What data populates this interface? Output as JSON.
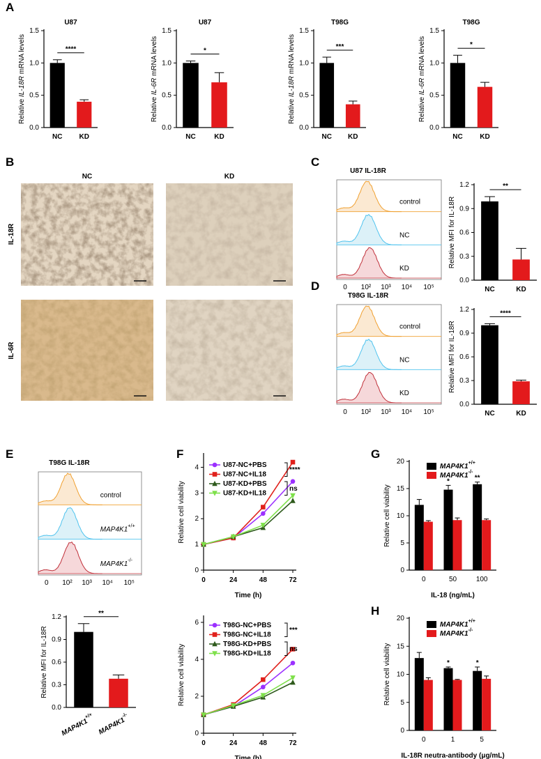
{
  "panel_labels": [
    "A",
    "B",
    "C",
    "D",
    "E",
    "F",
    "G",
    "H"
  ],
  "ihc": {
    "columns": [
      "NC",
      "KD"
    ],
    "rows": [
      "IL-18R",
      "IL-6R"
    ]
  },
  "flow": [
    {
      "title": "U87 IL-18R",
      "populations": [
        "control",
        "NC",
        "KD"
      ],
      "x_labels": [
        "0",
        "10²",
        "10³",
        "10⁴",
        "10⁵"
      ]
    },
    {
      "title": "T98G IL-18R",
      "populations": [
        "control",
        "NC",
        "KD"
      ],
      "x_labels": [
        "0",
        "10²",
        "10³",
        "10⁴",
        "10⁵"
      ]
    },
    {
      "title": "T98G IL-18R",
      "populations": [
        "control",
        "MAP4K1+/+",
        "MAP4K1-/-"
      ],
      "x_labels": [
        "0",
        "10²",
        "10³",
        "10⁴",
        "10⁵"
      ]
    }
  ],
  "chart_data": [
    {
      "type": "bar",
      "title": "U87",
      "ylabel": "Relative IL-18R mRNA levels",
      "categories": [
        "NC",
        "KD"
      ],
      "values": [
        1.0,
        0.4
      ],
      "errors": [
        0.05,
        0.03
      ],
      "colors": [
        "#000000",
        "#e31a1c"
      ],
      "ylim": [
        0,
        1.5
      ],
      "yticks": [
        {
          "value": 0,
          "label": "0.0"
        },
        0.5,
        {
          "value": 1,
          "label": "1.0"
        },
        1.5
      ],
      "significance": "****"
    },
    {
      "type": "bar",
      "title": "U87",
      "ylabel": "Relative IL-6R mRNA levels",
      "categories": [
        "NC",
        "KD"
      ],
      "values": [
        1.0,
        0.7
      ],
      "errors": [
        0.03,
        0.15
      ],
      "colors": [
        "#000000",
        "#e31a1c"
      ],
      "ylim": [
        0,
        1.5
      ],
      "yticks": [
        {
          "value": 0,
          "label": "0.0"
        },
        0.5,
        {
          "value": 1,
          "label": "1.0"
        },
        1.5
      ],
      "significance": "*"
    },
    {
      "type": "bar",
      "title": "T98G",
      "ylabel": "Relative IL-18R mRNA levels",
      "categories": [
        "NC",
        "KD"
      ],
      "values": [
        1.0,
        0.36
      ],
      "errors": [
        0.09,
        0.05
      ],
      "colors": [
        "#000000",
        "#e31a1c"
      ],
      "ylim": [
        0,
        1.5
      ],
      "yticks": [
        {
          "value": 0,
          "label": "0.0"
        },
        0.5,
        {
          "value": 1,
          "label": "1.0"
        },
        1.5
      ],
      "significance": "***"
    },
    {
      "type": "bar",
      "title": "T98G",
      "ylabel": "Relative IL-6R mRNA levels",
      "categories": [
        "NC",
        "KD"
      ],
      "values": [
        1.0,
        0.63
      ],
      "errors": [
        0.12,
        0.07
      ],
      "colors": [
        "#000000",
        "#e31a1c"
      ],
      "ylim": [
        0,
        1.5
      ],
      "yticks": [
        {
          "value": 0,
          "label": "0.0"
        },
        0.5,
        {
          "value": 1,
          "label": "1.0"
        },
        1.5
      ],
      "significance": "*"
    },
    {
      "type": "bar",
      "ylabel": "Relative MFI for IL-18R",
      "categories": [
        "NC",
        "KD"
      ],
      "values": [
        0.99,
        0.26
      ],
      "errors": [
        0.06,
        0.14
      ],
      "colors": [
        "#000000",
        "#e31a1c"
      ],
      "ylim": [
        0,
        1.2
      ],
      "yticks": [
        {
          "value": 0,
          "label": "0.0"
        },
        0.3,
        0.6,
        0.9,
        1.2
      ],
      "significance": "**"
    },
    {
      "type": "bar",
      "ylabel": "Relative MFI for IL-18R",
      "categories": [
        "NC",
        "KD"
      ],
      "values": [
        1.0,
        0.29
      ],
      "errors": [
        0.02,
        0.015
      ],
      "colors": [
        "#000000",
        "#e31a1c"
      ],
      "ylim": [
        0,
        1.2
      ],
      "yticks": [
        {
          "value": 0,
          "label": "0.0"
        },
        0.3,
        0.6,
        0.9,
        1.2
      ],
      "significance": "****"
    },
    {
      "type": "bar",
      "ylabel": "Relative MFI for IL-18R",
      "categories": [
        "MAP4K1+/+",
        "MAP4K1-/-"
      ],
      "values": [
        1.0,
        0.38
      ],
      "errors": [
        0.11,
        0.05
      ],
      "colors": [
        "#000000",
        "#e31a1c"
      ],
      "ylim": [
        0,
        1.2
      ],
      "yticks": [
        {
          "value": 0,
          "label": "0.0"
        },
        0.3,
        0.6,
        0.9,
        1.2
      ],
      "significance": "**"
    },
    {
      "type": "line",
      "ylabel": "Relative cell viability",
      "xlabel": "Time (h)",
      "x": [
        0,
        24,
        48,
        72
      ],
      "xlim": [
        0,
        72
      ],
      "xticks": [
        0,
        24,
        48,
        72
      ],
      "ylim": [
        0,
        4.5
      ],
      "yticks": [
        0,
        1,
        2,
        3,
        4
      ],
      "series": [
        {
          "name": "U87-NC+PBS",
          "color": "#9b30ff",
          "marker": "circle",
          "values": [
            1,
            1.25,
            2.2,
            3.45
          ]
        },
        {
          "name": "U87-NC+IL18",
          "color": "#e0201b",
          "marker": "square",
          "values": [
            1,
            1.25,
            2.45,
            4.2
          ]
        },
        {
          "name": "U87-KD+PBS",
          "color": "#2e5a1c",
          "marker": "triangle",
          "values": [
            1,
            1.3,
            1.65,
            2.7
          ]
        },
        {
          "name": "U87-KD+IL18",
          "color": "#7ee04a",
          "marker": "triangle-down",
          "values": [
            1,
            1.3,
            1.75,
            2.9
          ]
        }
      ],
      "annotations": [
        "****",
        "ns"
      ]
    },
    {
      "type": "line",
      "ylabel": "Relative cell viability",
      "xlabel": "Time (h)",
      "x": [
        0,
        24,
        48,
        72
      ],
      "xlim": [
        0,
        72
      ],
      "xticks": [
        0,
        24,
        48,
        72
      ],
      "ylim": [
        0,
        6.3
      ],
      "yticks": [
        0,
        2,
        4,
        6
      ],
      "series": [
        {
          "name": "T98G-NC+PBS",
          "color": "#9b30ff",
          "marker": "circle",
          "values": [
            1,
            1.45,
            2.5,
            3.8
          ]
        },
        {
          "name": "T98G-NC+IL18",
          "color": "#e0201b",
          "marker": "square",
          "values": [
            1,
            1.55,
            2.9,
            4.55
          ]
        },
        {
          "name": "T98G-KD+PBS",
          "color": "#2e5a1c",
          "marker": "triangle",
          "values": [
            1,
            1.45,
            1.95,
            2.75
          ]
        },
        {
          "name": "T98G-KD+IL18",
          "color": "#7ee04a",
          "marker": "triangle-down",
          "values": [
            1,
            1.5,
            2.05,
            3.0
          ]
        }
      ],
      "annotations": [
        "***",
        "ns"
      ]
    },
    {
      "type": "bar",
      "ylabel": "Relative cell viability",
      "xlabel": "IL-18 (ng/mL)",
      "categories": [
        "0",
        "50",
        "100"
      ],
      "ylim": [
        0,
        20
      ],
      "yticks": [
        0,
        5,
        10,
        15,
        20
      ],
      "series": [
        {
          "name": "MAP4K1+/+",
          "color": "#000000",
          "values": [
            12,
            14.8,
            15.8
          ],
          "errors": [
            1,
            0.8,
            0.4
          ]
        },
        {
          "name": "MAP4K1-/-",
          "color": "#e31a1c",
          "values": [
            8.9,
            9.2,
            9.2
          ],
          "errors": [
            0.2,
            0.4,
            0.2
          ]
        }
      ],
      "significance": [
        null,
        "*",
        "**"
      ]
    },
    {
      "type": "bar",
      "ylabel": "Relative cell viability",
      "xlabel": "IL-18R neutra-antibody (μg/mL)",
      "categories": [
        "0",
        "1",
        "5"
      ],
      "ylim": [
        0,
        20
      ],
      "yticks": [
        0,
        5,
        10,
        15,
        20
      ],
      "series": [
        {
          "name": "MAP4K1+/+",
          "color": "#000000",
          "values": [
            12.9,
            11.1,
            10.6
          ],
          "errors": [
            1,
            0.2,
            0.7
          ]
        },
        {
          "name": "MAP4K1-/-",
          "color": "#e31a1c",
          "values": [
            9,
            9,
            9.2
          ],
          "errors": [
            0.4,
            0.1,
            0.5
          ]
        }
      ],
      "significance": [
        null,
        "*",
        "*"
      ]
    }
  ]
}
